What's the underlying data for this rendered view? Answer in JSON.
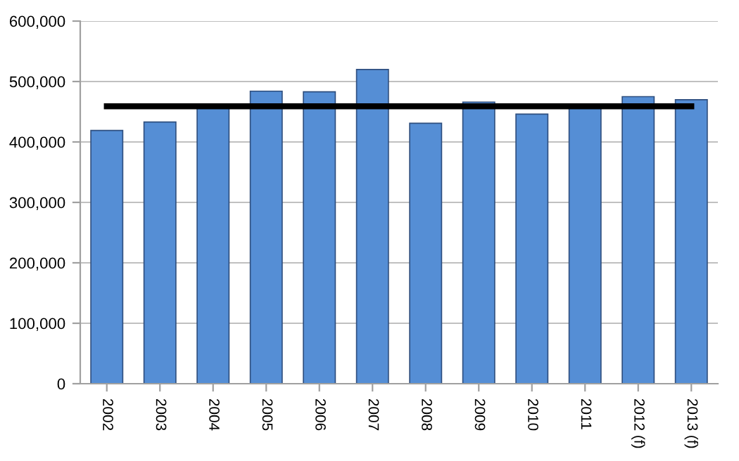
{
  "chart_data": {
    "type": "bar",
    "categories": [
      "2002",
      "2003",
      "2004",
      "2005",
      "2006",
      "2007",
      "2008",
      "2009",
      "2010",
      "2011",
      "2012 (f)",
      "2013 (f)"
    ],
    "series": [
      {
        "color": "#558ed5",
        "values": [
          419000,
          433000,
          460000,
          484000,
          483000,
          520000,
          431000,
          466000,
          446000,
          460000,
          475000,
          470000
        ]
      },
      {
        "type": "line",
        "color": "#000000",
        "values": [
          459000,
          459000,
          459000,
          459000,
          459000,
          459000,
          459000,
          459000,
          459000,
          459000,
          459000,
          459000
        ]
      }
    ],
    "ylim": [
      0,
      600000
    ],
    "yticks": [
      {
        "value": 0,
        "label": "0"
      },
      {
        "value": 100000,
        "label": "100,000"
      },
      {
        "value": 200000,
        "label": "200,000"
      },
      {
        "value": 300000,
        "label": "300,000"
      },
      {
        "value": 400000,
        "label": "400,000"
      },
      {
        "value": 500000,
        "label": "500,000"
      },
      {
        "value": 600000,
        "label": "600,000"
      }
    ],
    "grid": "y",
    "legend": false,
    "marker": "none",
    "line_style": "solid"
  }
}
